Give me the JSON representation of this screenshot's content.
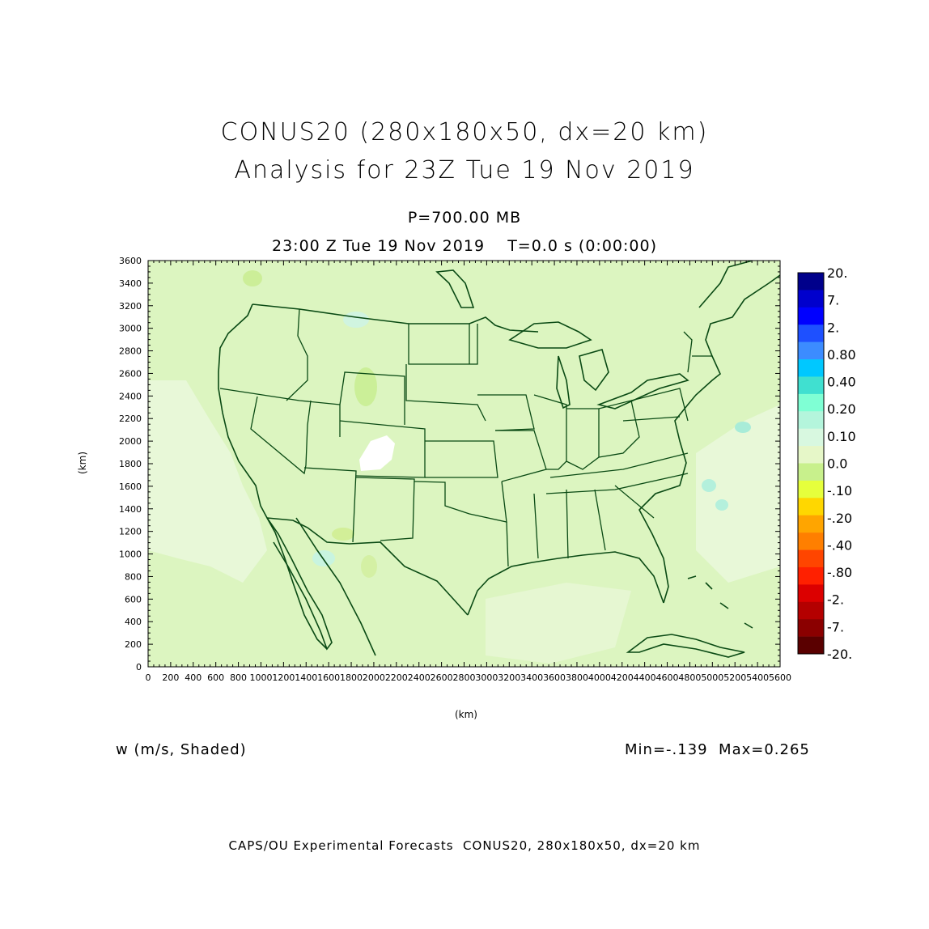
{
  "title": {
    "line1": "CONUS20 (280x180x50, dx=20 km)",
    "line2": "Analysis for 23Z Tue 19 Nov 2019"
  },
  "subtitle": {
    "level": "P=700.00 MB",
    "time": "23:00 Z Tue 19 Nov 2019    T=0.0 s (0:00:00)"
  },
  "field_label": "w (m/s, Shaded)",
  "minmax": "Min=-.139  Max=0.265",
  "footer": "CAPS/OU Experimental Forecasts  CONUS20, 280x180x50, dx=20 km",
  "axes": {
    "x_label": "(km)",
    "y_label": "(km)",
    "x_ticks": [
      "0",
      "200",
      "400",
      "600",
      "800",
      "1000",
      "1200",
      "1400",
      "1600",
      "1800",
      "2000",
      "2200",
      "2400",
      "2600",
      "2800",
      "3000",
      "3200",
      "3400",
      "3600",
      "3800",
      "4000",
      "4200",
      "4400",
      "4600",
      "4800",
      "5000",
      "5200",
      "5400",
      "5600"
    ],
    "y_ticks": [
      "0",
      "200",
      "400",
      "600",
      "800",
      "1000",
      "1200",
      "1400",
      "1600",
      "1800",
      "2000",
      "2200",
      "2400",
      "2600",
      "2800",
      "3000",
      "3200",
      "3400",
      "3600"
    ],
    "x_range": [
      0,
      5600
    ],
    "y_range": [
      0,
      3600
    ]
  },
  "colorbar": {
    "labels": [
      "20.",
      "7.",
      "2.",
      "0.80",
      "0.40",
      "0.20",
      "0.10",
      "0.0",
      "-.10",
      "-.20",
      "-.40",
      "-.80",
      "-2.",
      "-7.",
      "-20."
    ],
    "colors": [
      "#00008b",
      "#0000cd",
      "#0000ff",
      "#1e50ff",
      "#3c8cff",
      "#00c8ff",
      "#40e0d0",
      "#7fffd4",
      "#b4f5dc",
      "#d8f8e0",
      "#e6f7c8",
      "#c8f08c",
      "#e6ff3c",
      "#ffd700",
      "#ffa500",
      "#ff7f00",
      "#ff4500",
      "#ff2000",
      "#dc0000",
      "#b40000",
      "#8b0000",
      "#5a0000"
    ]
  },
  "map": {
    "base_color": "#dcf5c0",
    "line_color": "#0a4a14"
  }
}
